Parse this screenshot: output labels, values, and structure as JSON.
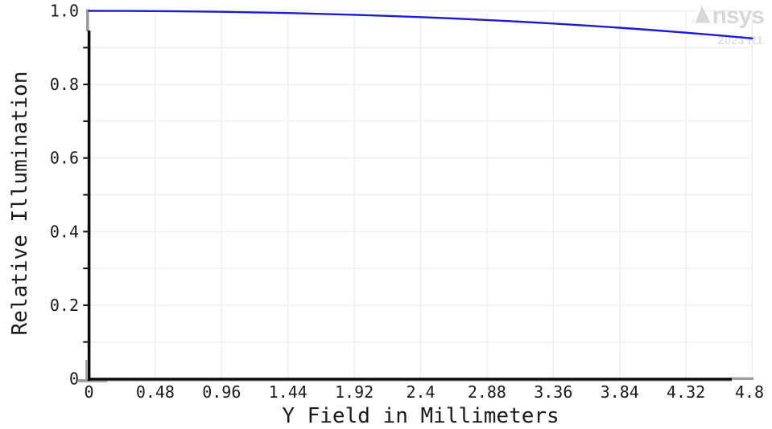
{
  "chart_data": {
    "type": "line",
    "title": "",
    "xlabel": "Y Field in Millimeters",
    "ylabel": "Relative Illumination",
    "xlim": [
      0,
      4.8
    ],
    "ylim": [
      0,
      1.0
    ],
    "grid": {
      "show": true,
      "x_step": 0.48,
      "y_step": 0.1,
      "color": "#ececec"
    },
    "x_ticks": {
      "values": [
        0,
        0.48,
        0.96,
        1.44,
        1.92,
        2.4,
        2.88,
        3.36,
        3.84,
        4.32,
        4.8
      ],
      "labels": [
        "0",
        "0.48",
        "0.96",
        "1.44",
        "1.92",
        "2.4",
        "2.88",
        "3.36",
        "3.84",
        "4.32",
        "4.8"
      ]
    },
    "y_ticks": {
      "values": [
        0,
        0.2,
        0.4,
        0.6,
        0.8,
        1.0
      ],
      "labels": [
        "0",
        "0.2",
        "0.4",
        "0.6",
        "0.8",
        "1.0"
      ]
    },
    "legend": {
      "show": false
    },
    "series": [
      {
        "name": "Relative Illumination",
        "color": "#1c1ccd",
        "x": [
          0,
          0.24,
          0.48,
          0.72,
          0.96,
          1.2,
          1.44,
          1.68,
          1.92,
          2.16,
          2.4,
          2.64,
          2.88,
          3.12,
          3.36,
          3.6,
          3.84,
          4.08,
          4.32,
          4.56,
          4.8
        ],
        "y": [
          1.0,
          0.9998,
          0.9993,
          0.9985,
          0.9974,
          0.9959,
          0.994,
          0.9918,
          0.9893,
          0.9863,
          0.983,
          0.9793,
          0.9752,
          0.9706,
          0.9656,
          0.9601,
          0.9541,
          0.9476,
          0.9407,
          0.9331,
          0.925
        ]
      }
    ]
  },
  "watermark": {
    "brand": "Ansys",
    "version": "2023 R1"
  },
  "colors": {
    "curve": "#1c1ccd",
    "grid": "#ececec",
    "axis": "#0b0b0b",
    "axis_cap": "#9c9c9c",
    "axis_shadow": "#bbbbbb",
    "tick_text": "#1a1a1a",
    "watermark_brand": "#d8d8d8",
    "watermark_version": "#e2e2e2",
    "background": "#ffffff"
  }
}
